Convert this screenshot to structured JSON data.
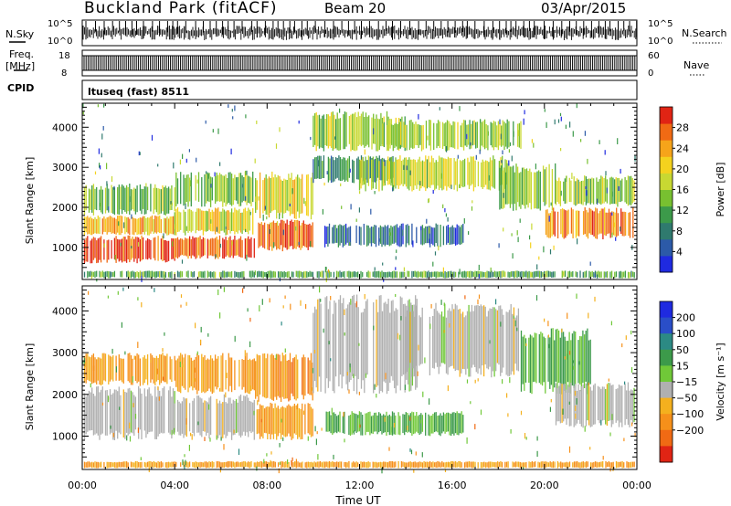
{
  "header": {
    "title": "Buckland Park (fitACF)",
    "beam": "Beam 20",
    "date": "03/Apr/2015"
  },
  "strips": {
    "nsky": {
      "label": "N.Sky",
      "ticks": [
        "10^5",
        "10^0"
      ],
      "right_label": "N.Search",
      "right_ticks": [
        "10^5",
        "10^0"
      ]
    },
    "freq": {
      "label": "Freq.",
      "unit": "[MHz]",
      "ticks": [
        "18",
        "8"
      ],
      "right_label": "Nave",
      "right_ticks": [
        "60",
        "0"
      ]
    },
    "cpid": {
      "label": "CPID",
      "text": "ltuseq (fast) 8511"
    }
  },
  "chart_data": [
    {
      "type": "heatmap",
      "name": "power",
      "ylabel": "Slant Range [km]",
      "xlabel": "Time UT",
      "x_ticks": [
        "00:00",
        "04:00",
        "08:00",
        "12:00",
        "16:00",
        "20:00",
        "00:00"
      ],
      "xlim_hours": [
        0,
        24
      ],
      "y_ticks": [
        "1000",
        "2000",
        "3000",
        "4000"
      ],
      "y_tick_values": [
        1000,
        2000,
        3000,
        4000
      ],
      "ylim": [
        200,
        4600
      ],
      "colorbar": {
        "label": "Power [dB]",
        "ticks": [
          "4",
          "8",
          "12",
          "16",
          "20",
          "24",
          "28"
        ],
        "tick_values": [
          4,
          8,
          12,
          16,
          20,
          24,
          28
        ],
        "range": [
          0,
          32
        ],
        "colors": [
          "#1f2ae0",
          "#2c5aa8",
          "#2f7a6e",
          "#3c9a4a",
          "#78c030",
          "#c8d832",
          "#f4d21e",
          "#f6a41a",
          "#f06a14",
          "#e02414"
        ]
      },
      "regions": [
        {
          "t0": 0.1,
          "t1": 4.0,
          "r0": 600,
          "r1": 1300,
          "level": 0.95
        },
        {
          "t0": 0.1,
          "t1": 4.0,
          "r0": 1300,
          "r1": 1800,
          "level": 0.7
        },
        {
          "t0": 0.1,
          "t1": 4.0,
          "r0": 1800,
          "r1": 2600,
          "level": 0.45
        },
        {
          "t0": 4.0,
          "t1": 7.5,
          "r0": 700,
          "r1": 1300,
          "level": 0.9
        },
        {
          "t0": 4.0,
          "t1": 7.5,
          "r0": 1300,
          "r1": 2000,
          "level": 0.6
        },
        {
          "t0": 4.0,
          "t1": 7.5,
          "r0": 2000,
          "r1": 2900,
          "level": 0.45
        },
        {
          "t0": 7.5,
          "t1": 10.0,
          "r0": 900,
          "r1": 1700,
          "level": 0.9
        },
        {
          "t0": 7.5,
          "t1": 10.0,
          "r0": 1700,
          "r1": 2900,
          "level": 0.6
        },
        {
          "t0": 10.0,
          "t1": 14.0,
          "r0": 3400,
          "r1": 4400,
          "level": 0.5
        },
        {
          "t0": 10.0,
          "t1": 13.5,
          "r0": 2600,
          "r1": 3300,
          "level": 0.3
        },
        {
          "t0": 10.5,
          "t1": 16.5,
          "r0": 1000,
          "r1": 1600,
          "level": 0.2
        },
        {
          "t0": 12.0,
          "t1": 18.5,
          "r0": 2400,
          "r1": 3300,
          "level": 0.55
        },
        {
          "t0": 13.0,
          "t1": 19.0,
          "r0": 3400,
          "r1": 4200,
          "level": 0.5
        },
        {
          "t0": 18.0,
          "t1": 20.5,
          "r0": 1900,
          "r1": 3100,
          "level": 0.45
        },
        {
          "t0": 20.0,
          "t1": 23.9,
          "r0": 1200,
          "r1": 2000,
          "level": 0.85
        },
        {
          "t0": 20.5,
          "t1": 23.9,
          "r0": 2000,
          "r1": 2800,
          "level": 0.5
        },
        {
          "t0": 0.1,
          "t1": 23.9,
          "r0": 230,
          "r1": 420,
          "level": 0.35
        }
      ]
    },
    {
      "type": "heatmap",
      "name": "velocity",
      "ylabel": "Slant Range [km]",
      "xlabel": "Time UT",
      "x_ticks": [
        "00:00",
        "04:00",
        "08:00",
        "12:00",
        "16:00",
        "20:00",
        "00:00"
      ],
      "xlim_hours": [
        0,
        24
      ],
      "y_ticks": [
        "1000",
        "2000",
        "3000",
        "4000"
      ],
      "y_tick_values": [
        1000,
        2000,
        3000,
        4000
      ],
      "ylim": [
        200,
        4600
      ],
      "colorbar": {
        "label": "Velocity [m s⁻¹]",
        "ticks": [
          "200",
          "100",
          "50",
          "15",
          "−15",
          "−50",
          "−100",
          "−200"
        ],
        "colors": [
          "#1f2ae0",
          "#2a4ec8",
          "#2c8a84",
          "#3c9a4a",
          "#70c838",
          "#b0b0b0",
          "#f4b01e",
          "#f6901a",
          "#f06a14",
          "#e02414"
        ]
      },
      "regions": [
        {
          "t0": 0.1,
          "t1": 4.0,
          "r0": 900,
          "r1": 2200,
          "level": 0.0
        },
        {
          "t0": 0.1,
          "t1": 4.0,
          "r0": 2200,
          "r1": 3000,
          "level": -0.35
        },
        {
          "t0": 4.0,
          "t1": 7.5,
          "r0": 900,
          "r1": 2000,
          "level": 0.0
        },
        {
          "t0": 4.0,
          "t1": 7.5,
          "r0": 2000,
          "r1": 3000,
          "level": -0.5
        },
        {
          "t0": 7.5,
          "t1": 10.0,
          "r0": 900,
          "r1": 1800,
          "level": -0.5
        },
        {
          "t0": 7.5,
          "t1": 10.0,
          "r0": 1800,
          "r1": 3000,
          "level": -0.6
        },
        {
          "t0": 10.0,
          "t1": 14.5,
          "r0": 2000,
          "r1": 4400,
          "level": 0.0
        },
        {
          "t0": 10.5,
          "t1": 16.5,
          "r0": 1000,
          "r1": 1600,
          "level": 0.4
        },
        {
          "t0": 14.0,
          "t1": 19.0,
          "r0": 2400,
          "r1": 4200,
          "level": 0.0
        },
        {
          "t0": 19.0,
          "t1": 22.0,
          "r0": 2000,
          "r1": 3600,
          "level": 0.45
        },
        {
          "t0": 20.5,
          "t1": 23.9,
          "r0": 1200,
          "r1": 2300,
          "level": 0.0
        },
        {
          "t0": 0.1,
          "t1": 23.9,
          "r0": 230,
          "r1": 400,
          "level": -0.4
        }
      ]
    }
  ]
}
